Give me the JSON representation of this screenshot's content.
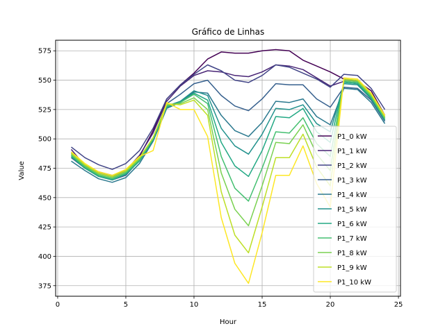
{
  "chart_data": {
    "type": "line",
    "title": "Gráfico de Linhas",
    "xlabel": "Hour",
    "ylabel": "Value",
    "xlim": [
      -0.15,
      25.15
    ],
    "ylim": [
      366,
      584
    ],
    "xticks": [
      0,
      5,
      10,
      15,
      20,
      25
    ],
    "yticks": [
      375,
      400,
      425,
      450,
      475,
      500,
      525,
      550,
      575
    ],
    "grid": true,
    "legend_position": "lower-right",
    "x": [
      1,
      2,
      3,
      4,
      5,
      6,
      7,
      8,
      9,
      10,
      11,
      12,
      13,
      14,
      15,
      16,
      17,
      18,
      19,
      20,
      21,
      22,
      23,
      24
    ],
    "series": [
      {
        "name": "P1_0 kW",
        "color": "#440154",
        "values": [
          488,
          476,
          471,
          468,
          472,
          485,
          507,
          534,
          546,
          556,
          568,
          574,
          573,
          573,
          575,
          576,
          575,
          567,
          562,
          557,
          551,
          549,
          541,
          520
        ]
      },
      {
        "name": "P1_1 kW",
        "color": "#482475",
        "values": [
          491,
          477,
          472,
          469,
          473,
          486,
          505,
          532,
          545,
          554,
          558,
          557,
          554,
          553,
          557,
          563,
          562,
          559,
          552,
          545,
          549,
          548,
          538,
          518
        ]
      },
      {
        "name": "P1_2 kW",
        "color": "#414487",
        "values": [
          493,
          484,
          478,
          474,
          479,
          490,
          509,
          534,
          546,
          555,
          563,
          558,
          550,
          548,
          554,
          563,
          561,
          556,
          551,
          544,
          555,
          554,
          543,
          525
        ]
      },
      {
        "name": "P1_3 kW",
        "color": "#355f8d",
        "values": [
          484,
          475,
          468,
          465,
          469,
          482,
          500,
          530,
          538,
          547,
          550,
          537,
          528,
          524,
          534,
          547,
          546,
          546,
          534,
          527,
          544,
          543,
          533,
          515
        ]
      },
      {
        "name": "P1_4 kW",
        "color": "#2a788e",
        "values": [
          481,
          473,
          466,
          463,
          467,
          479,
          498,
          526,
          531,
          540,
          539,
          520,
          507,
          502,
          514,
          532,
          531,
          534,
          519,
          512,
          543,
          542,
          531,
          513
        ]
      },
      {
        "name": "P1_5 kW",
        "color": "#21918c",
        "values": [
          486,
          476,
          469,
          466,
          471,
          482,
          500,
          528,
          532,
          541,
          537,
          509,
          494,
          487,
          504,
          526,
          525,
          529,
          513,
          506,
          547,
          546,
          534,
          516
        ]
      },
      {
        "name": "P1_6 kW",
        "color": "#22a884",
        "values": [
          485,
          475,
          468,
          465,
          470,
          481,
          499,
          527,
          531,
          539,
          533,
          497,
          477,
          468,
          490,
          519,
          518,
          526,
          506,
          497,
          548,
          547,
          535,
          516
        ]
      },
      {
        "name": "P1_7 kW",
        "color": "#44bf70",
        "values": [
          486,
          476,
          469,
          466,
          471,
          482,
          500,
          528,
          531,
          538,
          530,
          485,
          458,
          447,
          475,
          506,
          505,
          518,
          496,
          485,
          549,
          548,
          536,
          517
        ]
      },
      {
        "name": "P1_8 kW",
        "color": "#7ad151",
        "values": [
          487,
          477,
          470,
          467,
          472,
          483,
          501,
          529,
          530,
          535,
          525,
          471,
          440,
          426,
          460,
          497,
          496,
          512,
          487,
          473,
          550,
          549,
          537,
          518
        ]
      },
      {
        "name": "P1_9 kW",
        "color": "#bddf26",
        "values": [
          488,
          478,
          471,
          468,
          473,
          484,
          501,
          530,
          529,
          533,
          520,
          455,
          418,
          403,
          442,
          484,
          484,
          504,
          476,
          460,
          551,
          550,
          538,
          519
        ]
      },
      {
        "name": "P1_10 kW",
        "color": "#fde725",
        "values": [
          489,
          479,
          472,
          469,
          474,
          485,
          490,
          531,
          525,
          525,
          502,
          433,
          394,
          377,
          420,
          469,
          469,
          494,
          462,
          442,
          552,
          551,
          539,
          520
        ]
      }
    ]
  }
}
